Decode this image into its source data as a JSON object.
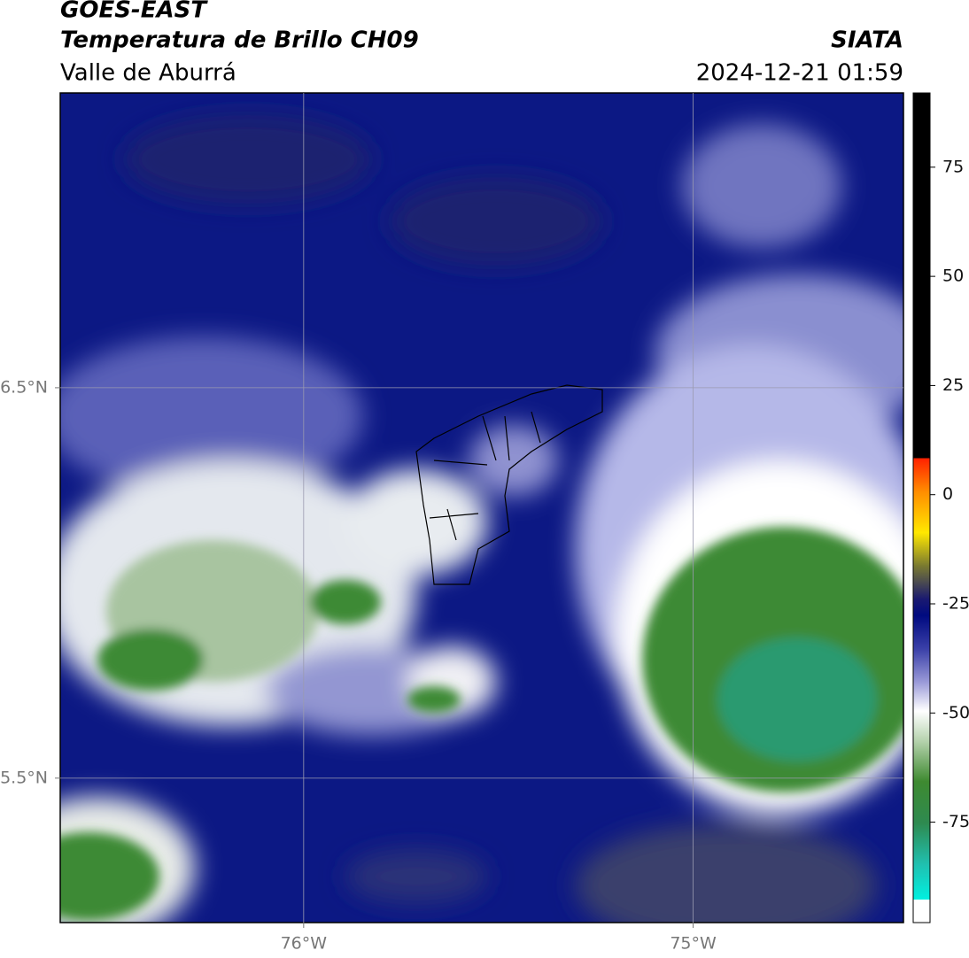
{
  "header": {
    "title": "GOES-EAST",
    "subtitle": "Temperatura de Brillo CH09",
    "source": "SIATA",
    "region": "Valle de Aburrá",
    "timestamp": "2024-12-21 01:59"
  },
  "map": {
    "xlim": [
      -76.625,
      -74.46
    ],
    "ylim": [
      5.13,
      7.255
    ],
    "xticks": [
      {
        "value": -76,
        "label": "76°W"
      },
      {
        "value": -75,
        "label": "75°W"
      }
    ],
    "yticks": [
      {
        "value": 6.5,
        "label": "6.5°N"
      },
      {
        "value": 5.5,
        "label": "5.5°N"
      }
    ],
    "grid": true
  },
  "colorbar": {
    "lim": [
      -98,
      92
    ],
    "ticks": [
      75,
      50,
      25,
      0,
      -25,
      -50,
      -75
    ]
  }
}
